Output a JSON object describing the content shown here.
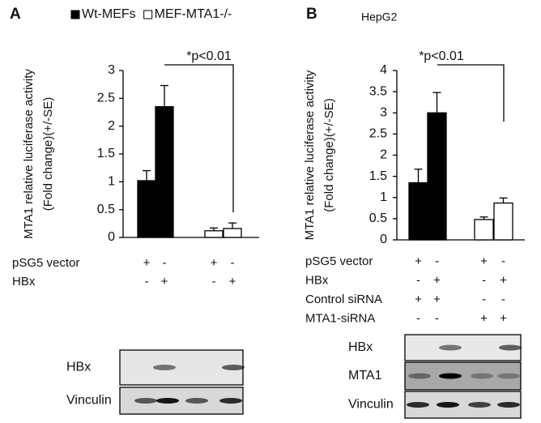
{
  "chart_data": [
    {
      "type": "bar",
      "panel": "A",
      "ylabel": [
        "MTA1  relative luciferase activity",
        "(Fold change)(+/-SE)"
      ],
      "categories": [
        null,
        null,
        null,
        null
      ],
      "series": [
        {
          "name": "Wt-MEFs",
          "color": "#000000",
          "values": [
            1.02,
            2.35,
            null,
            null
          ],
          "errors": [
            0.18,
            0.38,
            null,
            null
          ]
        },
        {
          "name": "MEF-MTA1-/-",
          "color": "#ffffff",
          "values": [
            null,
            null,
            0.12,
            0.16
          ],
          "errors": [
            null,
            null,
            0.05,
            0.1
          ]
        }
      ],
      "ylim": [
        0,
        3
      ],
      "yticks": [
        0,
        0.5,
        1,
        1.5,
        2,
        2.5,
        3
      ],
      "annotation": "*p<0.01",
      "conditions": [
        {
          "label": "pSG5 vector",
          "signs": [
            "+",
            "-",
            "+",
            "-"
          ]
        },
        {
          "label": "HBx",
          "signs": [
            "-",
            "+",
            "-",
            "+"
          ]
        }
      ],
      "blots": [
        "HBx",
        "Vinculin"
      ]
    },
    {
      "type": "bar",
      "panel": "B",
      "title": "HepG2",
      "ylabel": [
        "MTA1  relative luciferase activity",
        "(Fold change)(+/-SE)"
      ],
      "categories": [
        null,
        null,
        null,
        null
      ],
      "series": [
        {
          "color": "#000000",
          "values": [
            1.35,
            3.0,
            null,
            null
          ],
          "errors": [
            0.32,
            0.48,
            null,
            null
          ]
        },
        {
          "color": "#ffffff",
          "values": [
            null,
            null,
            0.48,
            0.87
          ],
          "errors": [
            null,
            null,
            0.06,
            0.12
          ]
        }
      ],
      "ylim": [
        0,
        4
      ],
      "yticks": [
        0,
        0.5,
        1,
        1.5,
        2,
        2.5,
        3,
        3.5,
        4
      ],
      "annotation": "*p<0.01",
      "conditions": [
        {
          "label": "pSG5 vector",
          "signs": [
            "+",
            "-",
            "+",
            "-"
          ]
        },
        {
          "label": "HBx",
          "signs": [
            "-",
            "+",
            "-",
            "+"
          ]
        },
        {
          "label": "Control siRNA",
          "signs": [
            "+",
            "+",
            "-",
            "-"
          ]
        },
        {
          "label": "MTA1-siRNA",
          "signs": [
            "-",
            "-",
            "+",
            "+"
          ]
        }
      ],
      "blots": [
        "HBx",
        "MTA1",
        "Vinculin"
      ]
    }
  ]
}
